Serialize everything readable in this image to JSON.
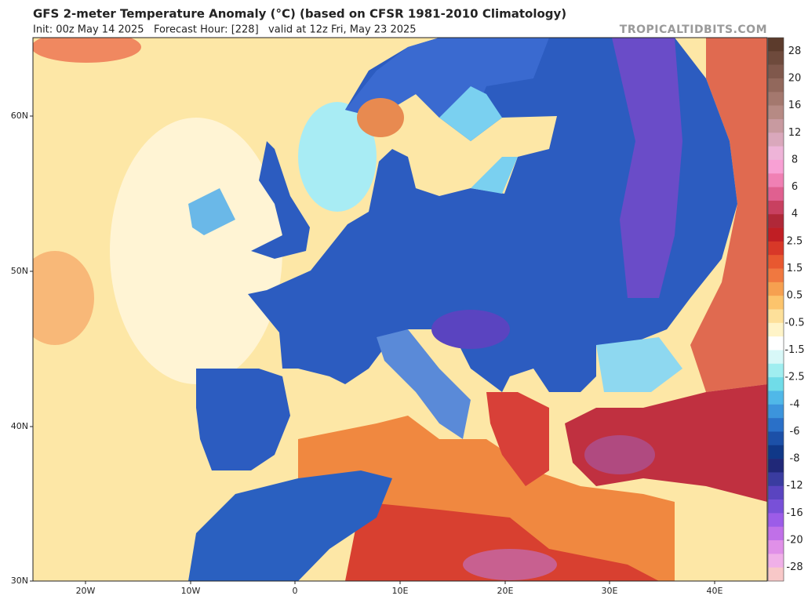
{
  "header": {
    "title": "GFS 2-meter Temperature Anomaly (°C) (based on CFSR 1981-2010 Climatology)",
    "subtitle": "Init: 00z May 14 2025   Forecast Hour: [228]   valid at 12z Fri, May 23 2025",
    "watermark": "TROPICALTIDBITS.COM"
  },
  "map": {
    "lat_labels": [
      "60N",
      "50N",
      "40N",
      "30N"
    ],
    "lon_labels": [
      "20W",
      "10W",
      "0",
      "10E",
      "20E",
      "30E",
      "40E"
    ]
  },
  "colorbar": {
    "labels": [
      28,
      20,
      16,
      12,
      8,
      6,
      4,
      2.5,
      1.5,
      0.5,
      -0.5,
      -1.5,
      -2.5,
      -4,
      -6,
      -8,
      -12,
      -16,
      -20,
      -28
    ],
    "colors": [
      "#5c3b2c",
      "#6e4a3c",
      "#80584c",
      "#92685c",
      "#a4786e",
      "#b68a84",
      "#c89aa0",
      "#daa8bc",
      "#eeb4d8",
      "#f8a0d4",
      "#f080b4",
      "#e06090",
      "#c84060",
      "#b02838",
      "#c01e24",
      "#d83828",
      "#e85830",
      "#f07840",
      "#f6a050",
      "#fcc46c",
      "#fde09a",
      "#fff4c8",
      "#ffffff",
      "#d8f8f8",
      "#a0eef0",
      "#70dce8",
      "#50b8e8",
      "#3c94dc",
      "#2a70c8",
      "#1c50a8",
      "#103888",
      "#202878",
      "#3a3ca0",
      "#5a44c0",
      "#7850d8",
      "#9c5ce8",
      "#c070e8",
      "#e090e8",
      "#f0b0e8",
      "#f8c8c8"
    ]
  }
}
